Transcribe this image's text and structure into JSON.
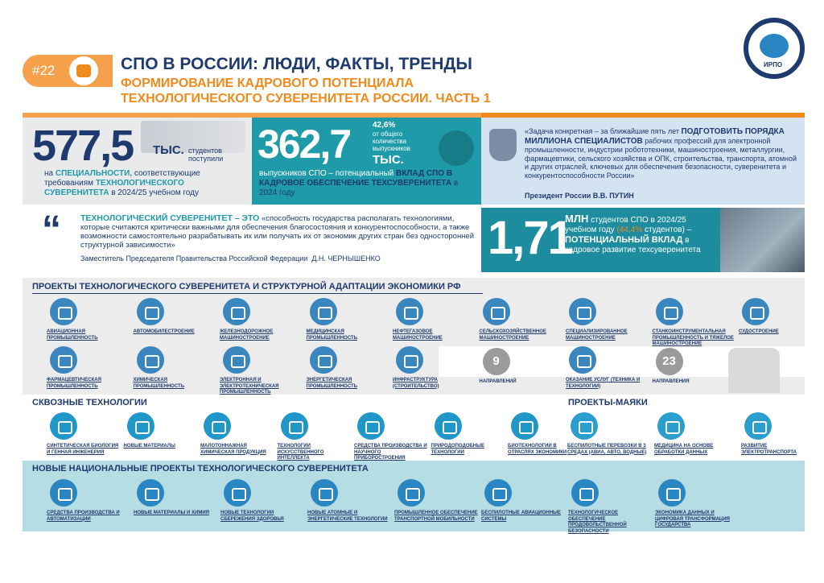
{
  "header": {
    "badge": "#22",
    "title": "СПО В РОССИИ: ЛЮДИ, ФАКТЫ, ТРЕНДЫ",
    "subtitle": [
      "ФОРМИРОВАНИЕ КАДРОВОГО ПОТЕНЦИАЛА",
      "ТЕХНОЛОГИЧЕСКОГО СУВЕРЕНИТЕТА РОССИИ. ЧАСТЬ 1"
    ],
    "logo": "ИРПО"
  },
  "stat1": {
    "number": "577,5",
    "unit": "ТЫС.",
    "caption": "студентов поступили",
    "text": [
      "на",
      "СПЕЦИАЛЬНОСТИ,",
      "соответствующие требованиям",
      "ТЕХНОЛОГИЧЕСКОГО СУВЕРЕНИТЕТА",
      "в 2024/25 учебном году"
    ]
  },
  "stat2": {
    "number": "362,7",
    "share": "42,6%",
    "share_caption": "от общего количества выпускников",
    "unit": "ТЫС.",
    "text": [
      "выпускников СПО – потенциальный",
      "ВКЛАД СПО В КАДРОВОЕ ОБЕСПЕЧЕНИЕ ТЕХСУВЕРЕНИТЕТА",
      "в 2024 году"
    ]
  },
  "quote1": {
    "text": [
      "«Задача конкретная – за ближайшие пять лет",
      "ПОДГОТОВИТЬ ПОРЯДКА МИЛЛИОНА СПЕЦИАЛИСТОВ",
      "рабочих профессий для электронной промышленности, индустрии робототехники, машиностроения, металлургии, фармацевтики, сельского хозяйства и ОПК, строительства, транспорта, атомной и других отраслей, ключевых для обеспечения безопасности, суверенитета и конкурентоспособности России»"
    ],
    "author": "Президент России В.В. ПУТИН"
  },
  "quote2": {
    "term": "ТЕХНОЛОГИЧЕСКИЙ СУВЕРЕНИТЕТ – ЭТО",
    "text": "«способность государства располагать технологиями, которые считаются критически важными для обеспечения благосостояния и конкурентоспособности, а также возможности самостоятельно разрабатывать их или получать их от экономик других стран без односторонней структурной зависимости»",
    "author": "Заместитель Председателя Правительства Российской Федерации  Д.Н. ЧЕРНЫШЕНКО"
  },
  "stat3": {
    "number": "1,71",
    "unit": "МЛН",
    "text": [
      "студентов СПО в 2024/25 учебном году",
      "(44,4%",
      "студентов) –",
      "ПОТЕНЦИАЛЬНЫЙ ВКЛАД",
      "в кадровое развитие техсуверенитета"
    ]
  },
  "projects": {
    "title": "ПРОЕКТЫ ТЕХНОЛОГИЧЕСКОГО СУВЕРЕНИТЕТА И СТРУКТУРНОЙ АДАПТАЦИИ ЭКОНОМИКИ РФ",
    "row1": [
      "АВИАЦИОННАЯ ПРОМЫШЛЕННОСТЬ",
      "АВТОМОБИЛЕСТРОЕНИЕ",
      "ЖЕЛЕЗНОДОРОЖНОЕ МАШИНОСТРОЕНИЕ",
      "МЕДИЦИНСКАЯ ПРОМЫШЛЕННОСТЬ",
      "НЕФТЕГАЗОВОЕ МАШИНОСТРОЕНИЕ",
      "СЕЛЬСКОХОЗЯЙСТВЕННОЕ МАШИНОСТРОЕНИЕ",
      "СПЕЦИАЛИЗИРОВАННОЕ МАШИНОСТРОЕНИЕ",
      "СТАНКОИНСТРУМЕНТАЛЬНАЯ ПРОМЫШЛЕННОСТЬ И ТЯЖЕЛОЕ МАШИНОСТРОЕНИЕ",
      "СУДОСТРОЕНИЕ"
    ],
    "row2": [
      "ФАРМАЦЕВТИЧЕСКАЯ ПРОМЫШЛЕННОСТЬ",
      "ХИМИЧЕСКАЯ ПРОМЫШЛЕННОСТЬ",
      "ЭЛЕКТРОННАЯ И ЭЛЕКТРОТЕХНИЧЕСКАЯ ПРОМЫШЛЕННОСТЬ",
      "ЭНЕРГЕТИЧЕСКАЯ ПРОМЫШЛЕННОСТЬ",
      "ИНФРАСТРУКТУРА (СТРОИТЕЛЬСТВО)"
    ],
    "count1": {
      "number": "9",
      "label": "НАПРАВЛЕНИЙ"
    },
    "services": "ОКАЗАНИЕ УСЛУГ (ТЕХНИКА И ТЕХНОЛОГИИ)",
    "count2": {
      "number": "23",
      "label": "НАПРАВЛЕНИЯ"
    }
  },
  "cross": {
    "title": "СКВОЗНЫЕ ТЕХНОЛОГИИ",
    "items": [
      "СИНТЕТИЧЕСКАЯ БИОЛОГИЯ И ГЕННАЯ ИНЖЕНЕРИЯ",
      "НОВЫЕ МАТЕРИАЛЫ",
      "МАЛОТОННАЖНАЯ ХИМИЧЕСКАЯ ПРОДУКЦИЯ",
      "ТЕХНОЛОГИИ ИСКУССТВЕННОГО ИНТЕЛЛЕКТА",
      "СРЕДСТВА ПРОИЗВОДСТВА И НАУЧНОГО ПРИБОРОСТРОЕНИЯ",
      "ПРИРОДОПОДОБНЫЕ ТЕХНОЛОГИИ",
      "БИОТЕХНОЛОГИИ В ОТРАСЛЯХ ЭКОНОМИКИ"
    ]
  },
  "lighthouse": {
    "title": "ПРОЕКТЫ-МАЯКИ",
    "items": [
      "БЕСПИЛОТНЫЕ ПЕРЕВОЗКИ В 3 СРЕДАХ (АВИА, АВТО, ВОДНЫЕ)",
      "МЕДИЦИНА НА ОСНОВЕ ОБРАБОТКИ ДАННЫХ",
      "РАЗВИТИЕ ЭЛЕКТРОТРАНСПОРТА"
    ]
  },
  "national": {
    "title": "НОВЫЕ НАЦИОНАЛЬНЫЕ ПРОЕКТЫ ТЕХНОЛОГИЧЕСКОГО СУВЕРЕНИТЕТА",
    "items": [
      "СРЕДСТВА ПРОИЗВОДСТВА И АВТОМАТИЗАЦИИ",
      "НОВЫЕ МАТЕРИАЛЫ И ХИМИЯ",
      "НОВЫЕ ТЕХНОЛОГИИ СБЕРЕЖЕНИЯ ЗДОРОВЬЯ",
      "НОВЫЕ АТОМНЫЕ И ЭНЕРГЕТИЧЕСКИЕ ТЕХНОЛОГИИ",
      "ПРОМЫШЛЕННОЕ ОБЕСПЕЧЕНИЕ ТРАНСПОРТНОЙ МОБИЛЬНОСТИ",
      "БЕСПИЛОТНЫЕ АВИАЦИОННЫЕ СИСТЕМЫ",
      "ТЕХНОЛОГИЧЕСКОЕ ОБЕСПЕЧЕНИЕ ПРОДОВОЛЬСТВЕННОЙ БЕЗОПАСНОСТИ",
      "ЭКОНОМИКА ДАННЫХ И ЦИФРОВАЯ ТРАНСФОРМАЦИЯ ГОСУДАРСТВА"
    ]
  }
}
